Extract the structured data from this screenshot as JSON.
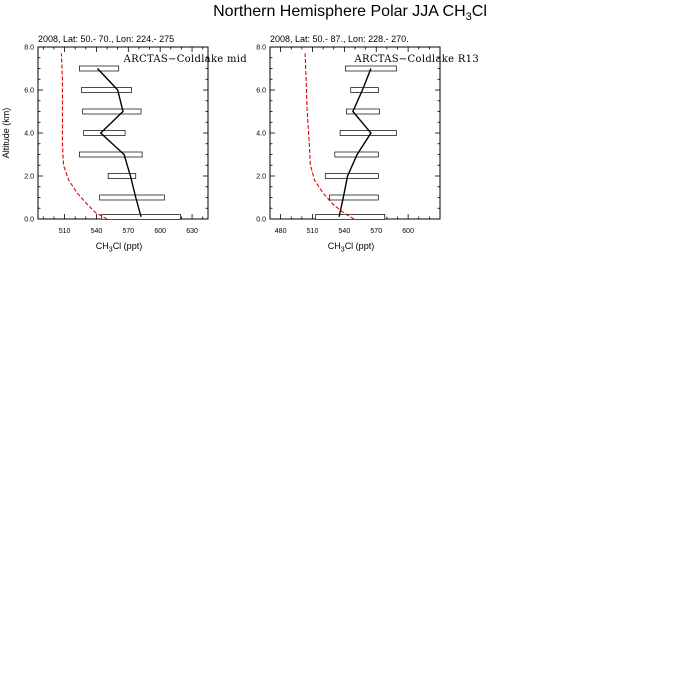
{
  "title": {
    "prefix": "Northern Hemisphere Polar JJA CH",
    "sub": "3",
    "suffix": "Cl"
  },
  "chart_data": [
    {
      "type": "line",
      "panel_label": "2008, Lat:  50.- 70., Lon: 224.- 275",
      "campaign": "ARCTAS−Coldlake  mid",
      "xlabel": {
        "prefix": "CH",
        "sub": "3",
        "suffix": "Cl (ppt)"
      },
      "ylabel": "Altitude (km)",
      "xlim": [
        485,
        645
      ],
      "ylim": [
        0,
        8
      ],
      "xticks": [
        510,
        540,
        570,
        600,
        630
      ],
      "xtick_labels": [
        "510",
        "540",
        "570",
        "600",
        "630"
      ],
      "yticks": [
        0,
        2,
        4,
        6,
        8
      ],
      "ytick_labels": [
        "0.0",
        "2.0",
        "4.0",
        "6.0",
        "8.0"
      ],
      "observations": {
        "altitude": [
          0.1,
          1.0,
          2.0,
          3.0,
          4.0,
          5.0,
          6.0,
          7.0
        ],
        "median": [
          582,
          577,
          572,
          566,
          544,
          565,
          560,
          541
        ],
        "box_low": [
          545,
          543,
          551,
          524,
          528,
          527,
          526,
          524
        ],
        "box_high": [
          619,
          604,
          577,
          583,
          567,
          582,
          573,
          561
        ]
      },
      "model": {
        "altitude": [
          0.0,
          0.3,
          0.7,
          1.2,
          1.8,
          2.5,
          3.5,
          5.0,
          6.5,
          7.7
        ],
        "values": [
          550,
          539,
          531,
          522,
          514,
          509,
          508,
          508,
          508,
          507
        ]
      }
    },
    {
      "type": "line",
      "panel_label": "2008, Lat:  50.- 87., Lon: 228.- 270.",
      "campaign": "ARCTAS−Coldlake  R13",
      "xlabel": {
        "prefix": "CH",
        "sub": "3",
        "suffix": "Cl (ppt)"
      },
      "ylabel": "",
      "xlim": [
        470,
        630
      ],
      "ylim": [
        0,
        8
      ],
      "xticks": [
        480,
        510,
        540,
        570,
        600
      ],
      "xtick_labels": [
        "480",
        "510",
        "540",
        "570",
        "600"
      ],
      "yticks": [
        0,
        2,
        4,
        6,
        8
      ],
      "ytick_labels": [
        "0.0",
        "2.0",
        "4.0",
        "6.0",
        "8.0"
      ],
      "observations": {
        "altitude": [
          0.1,
          1.0,
          2.0,
          3.0,
          4.0,
          5.0,
          6.0,
          7.0
        ],
        "median": [
          535,
          539,
          543,
          552,
          565,
          548,
          557,
          565
        ],
        "box_low": [
          513,
          526,
          522,
          531,
          536,
          542,
          546,
          541
        ],
        "box_high": [
          578,
          572,
          572,
          572,
          589,
          573,
          572,
          589
        ]
      },
      "model": {
        "altitude": [
          0.0,
          0.3,
          0.7,
          1.2,
          1.8,
          2.5,
          3.5,
          5.0,
          6.5,
          7.7
        ],
        "values": [
          549,
          539,
          529,
          520,
          512,
          508,
          507,
          505,
          504,
          503
        ]
      }
    }
  ]
}
